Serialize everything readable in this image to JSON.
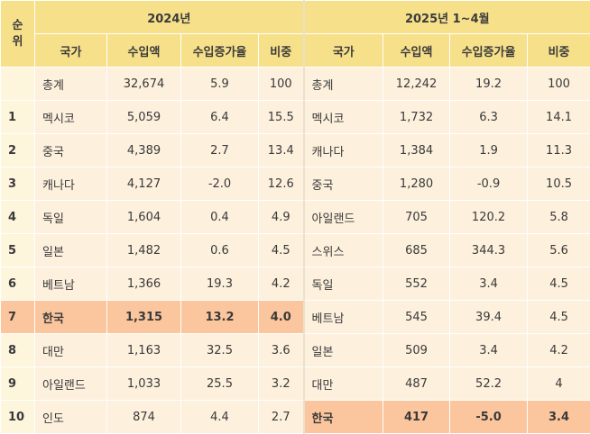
{
  "header": {
    "rank_label": "순\n위",
    "rank_label_top": "순",
    "rank_label_bottom": "위",
    "year_2024": "2024년",
    "year_2025": "2025년  1~4월",
    "col_country": "국가",
    "col_import": "수입액",
    "col_growth": "수입증가율",
    "col_share": "비중"
  },
  "rows": [
    {
      "rank": "",
      "c24": "총계",
      "i24": "32,674",
      "g24": "5.9",
      "s24": "100",
      "c25": "총계",
      "i25": "12,242",
      "g25": "19.2",
      "s25": "100"
    },
    {
      "rank": "1",
      "c24": "멕시코",
      "i24": "5,059",
      "g24": "6.4",
      "s24": "15.5",
      "c25": "멕시코",
      "i25": "1,732",
      "g25": "6.3",
      "s25": "14.1"
    },
    {
      "rank": "2",
      "c24": "중국",
      "i24": "4,389",
      "g24": "2.7",
      "s24": "13.4",
      "c25": "캐나다",
      "i25": "1,384",
      "g25": "1.9",
      "s25": "11.3"
    },
    {
      "rank": "3",
      "c24": "캐나다",
      "i24": "4,127",
      "g24": "-2.0",
      "s24": "12.6",
      "c25": "중국",
      "i25": "1,280",
      "g25": "-0.9",
      "s25": "10.5"
    },
    {
      "rank": "4",
      "c24": "독일",
      "i24": "1,604",
      "g24": "0.4",
      "s24": "4.9",
      "c25": "아일랜드",
      "i25": "705",
      "g25": "120.2",
      "s25": "5.8"
    },
    {
      "rank": "5",
      "c24": "일본",
      "i24": "1,482",
      "g24": "0.6",
      "s24": "4.5",
      "c25": "스위스",
      "i25": "685",
      "g25": "344.3",
      "s25": "5.6"
    },
    {
      "rank": "6",
      "c24": "베트남",
      "i24": "1,366",
      "g24": "19.3",
      "s24": "4.2",
      "c25": "독일",
      "i25": "552",
      "g25": "3.4",
      "s25": "4.5"
    },
    {
      "rank": "7",
      "c24": "한국",
      "i24": "1,315",
      "g24": "13.2",
      "s24": "4.0",
      "c25": "베트남",
      "i25": "545",
      "g25": "39.4",
      "s25": "4.5"
    },
    {
      "rank": "8",
      "c24": "대만",
      "i24": "1,163",
      "g24": "32.5",
      "s24": "3.6",
      "c25": "일본",
      "i25": "509",
      "g25": "3.4",
      "s25": "4.2"
    },
    {
      "rank": "9",
      "c24": "아일랜드",
      "i24": "1,033",
      "g24": "25.5",
      "s24": "3.2",
      "c25": "대만",
      "i25": "487",
      "g25": "52.2",
      "s25": "4"
    },
    {
      "rank": "10",
      "c24": "인도",
      "i24": "874",
      "g24": "4.4",
      "s24": "2.7",
      "c25": "한국",
      "i25": "417",
      "g25": "-5.0",
      "s25": "3.4"
    }
  ],
  "highlight": {
    "row_2024_rank": "7",
    "row_2025_rank": "10",
    "color": "#fbc69d"
  },
  "colors": {
    "header_bg": "#f6e08a",
    "cell_bg": "#fdf0dd",
    "highlight_bg": "#fbc69d"
  }
}
